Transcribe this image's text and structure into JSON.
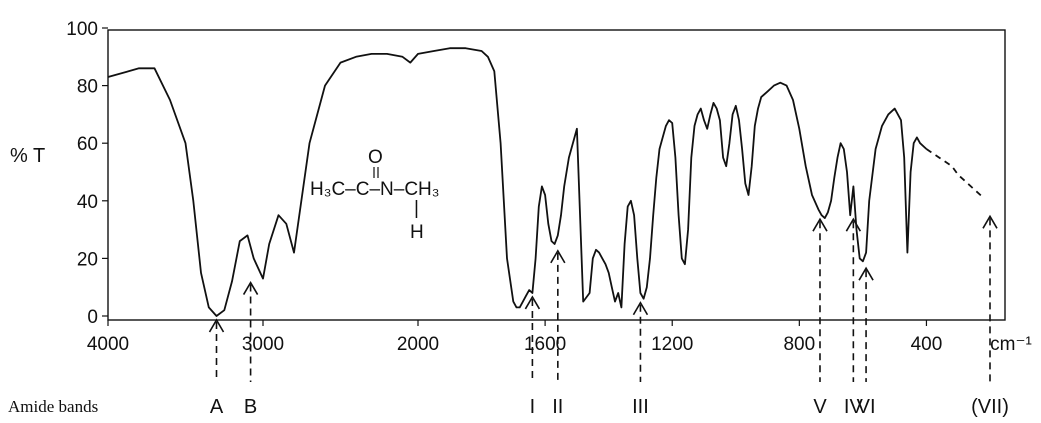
{
  "chart_data": {
    "type": "line",
    "title": "",
    "xlabel": "cm⁻¹",
    "ylabel": "% T",
    "xlim": [
      4000,
      200
    ],
    "ylim": [
      0,
      100
    ],
    "x_ticks": [
      "4000",
      "3000",
      "2000",
      "1600",
      "1200",
      "800",
      "400",
      "cm⁻¹"
    ],
    "y_ticks": [
      "100",
      "80",
      "60",
      "40",
      "20",
      "0"
    ],
    "formula": {
      "carbonyl_o": "O",
      "chain": "H₃C–C–N–CH₃",
      "nh_bond": "|",
      "nh_h": "H"
    },
    "series": [
      {
        "x": [
          4000,
          3800,
          3700,
          3600,
          3500,
          3450,
          3400,
          3350,
          3300,
          3250,
          3200,
          3150,
          3100,
          3060,
          3000,
          2960,
          2900,
          2850,
          2800,
          2700,
          2600,
          2500,
          2400,
          2300,
          2200,
          2100,
          2050,
          2000,
          1950,
          1900,
          1850,
          1800,
          1780,
          1760,
          1740,
          1720,
          1700,
          1690,
          1680,
          1670,
          1660,
          1650,
          1640,
          1630,
          1620,
          1610,
          1600,
          1590,
          1580,
          1570,
          1560,
          1550,
          1540,
          1525,
          1500,
          1480,
          1460,
          1450,
          1440,
          1430,
          1420,
          1410,
          1400,
          1390,
          1380,
          1370,
          1360,
          1350,
          1340,
          1330,
          1320,
          1310,
          1300,
          1290,
          1280,
          1270,
          1260,
          1250,
          1240,
          1230,
          1220,
          1210,
          1200,
          1190,
          1180,
          1170,
          1160,
          1150,
          1140,
          1130,
          1120,
          1110,
          1100,
          1090,
          1080,
          1070,
          1060,
          1050,
          1040,
          1030,
          1020,
          1010,
          1000,
          990,
          980,
          970,
          960,
          950,
          940,
          930,
          920,
          900,
          880,
          860,
          840,
          820,
          800,
          780,
          760,
          740,
          730,
          720,
          710,
          700,
          690,
          680,
          670,
          660,
          650,
          640,
          630,
          620,
          610,
          600,
          590,
          580,
          560,
          540,
          520,
          500,
          480,
          470,
          460,
          450,
          440,
          430,
          420,
          400
        ],
        "y": [
          83,
          86,
          86,
          75,
          60,
          40,
          15,
          3,
          0,
          2,
          12,
          26,
          28,
          20,
          13,
          25,
          35,
          32,
          22,
          60,
          80,
          88,
          90,
          91,
          91,
          90,
          88,
          91,
          92,
          93,
          93,
          92,
          90,
          85,
          60,
          20,
          5,
          3,
          3,
          5,
          7,
          9,
          8,
          20,
          38,
          45,
          42,
          32,
          26,
          25,
          28,
          35,
          45,
          55,
          65,
          5,
          8,
          20,
          23,
          22,
          20,
          18,
          15,
          10,
          5,
          8,
          3,
          25,
          38,
          40,
          35,
          20,
          8,
          6,
          10,
          20,
          35,
          48,
          58,
          62,
          66,
          68,
          67,
          55,
          35,
          20,
          18,
          30,
          55,
          66,
          70,
          72,
          68,
          65,
          70,
          74,
          72,
          68,
          55,
          52,
          60,
          70,
          73,
          68,
          58,
          46,
          42,
          52,
          66,
          72,
          76,
          78,
          80,
          81,
          80,
          75,
          65,
          52,
          42,
          37,
          35,
          34,
          36,
          40,
          48,
          55,
          60,
          58,
          50,
          35,
          45,
          30,
          20,
          19,
          22,
          40,
          58,
          66,
          70,
          72,
          68,
          55,
          22,
          50,
          60,
          62,
          60,
          58
        ]
      },
      {
        "x": [
          400,
          360,
          320,
          300,
          280,
          260,
          240,
          220
        ],
        "y": [
          58,
          55,
          52,
          49,
          47,
          45,
          43,
          41
        ],
        "style": "dashed"
      }
    ],
    "annotations": {
      "group_label": "Amide bands",
      "bands": [
        {
          "label": "A",
          "x": 3300,
          "y": 0
        },
        {
          "label": "B",
          "x": 3080,
          "y": 13
        },
        {
          "label": "I",
          "x": 1640,
          "y": 8
        },
        {
          "label": "II",
          "x": 1560,
          "y": 24
        },
        {
          "label": "III",
          "x": 1300,
          "y": 6
        },
        {
          "label": "V",
          "x": 735,
          "y": 35
        },
        {
          "label": "IV",
          "x": 630,
          "y": 35
        },
        {
          "label": "VI",
          "x": 590,
          "y": 18
        },
        {
          "label": "(VII)",
          "x": 200,
          "y": 36
        }
      ]
    }
  }
}
